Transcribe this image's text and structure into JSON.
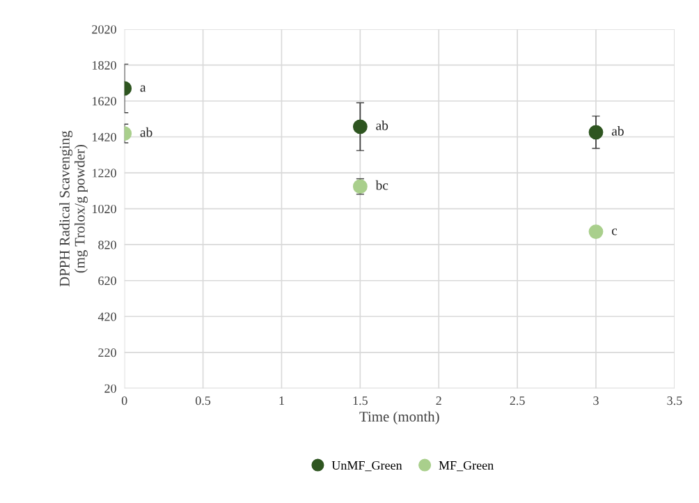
{
  "chart_data": {
    "type": "scatter",
    "xlabel": "Time (month)",
    "ylabel": "DPPH Radical Scavenging\n(mg Trolox/g powder)",
    "x": [
      0,
      1.5,
      3
    ],
    "series": [
      {
        "name": "UnMF_Green",
        "color": "#2e5520",
        "values": [
          1690,
          1477,
          1446
        ],
        "errors": [
          135,
          133,
          90
        ]
      },
      {
        "name": "MF_Green",
        "color": "#a9cf8c",
        "values": [
          1439,
          1144,
          892
        ],
        "errors": [
          52,
          43,
          null
        ]
      }
    ],
    "xlim": [
      0,
      3.5
    ],
    "xticks": [
      0,
      0.5,
      1,
      1.5,
      2,
      2.5,
      3,
      3.5
    ],
    "ylim": [
      20,
      2020
    ],
    "yticks": [
      20,
      220,
      420,
      620,
      820,
      1020,
      1220,
      1420,
      1620,
      1820,
      2020
    ],
    "grid": true,
    "legend": "bottom",
    "marker": "circle",
    "annotations": [
      {
        "text": "a",
        "x": 0,
        "y": 1690
      },
      {
        "text": "ab",
        "x": 0,
        "y": 1439
      },
      {
        "text": "ab",
        "x": 1.5,
        "y": 1477
      },
      {
        "text": "bc",
        "x": 1.5,
        "y": 1144
      },
      {
        "text": "ab",
        "x": 3,
        "y": 1446
      },
      {
        "text": "c",
        "x": 3,
        "y": 892
      }
    ]
  }
}
